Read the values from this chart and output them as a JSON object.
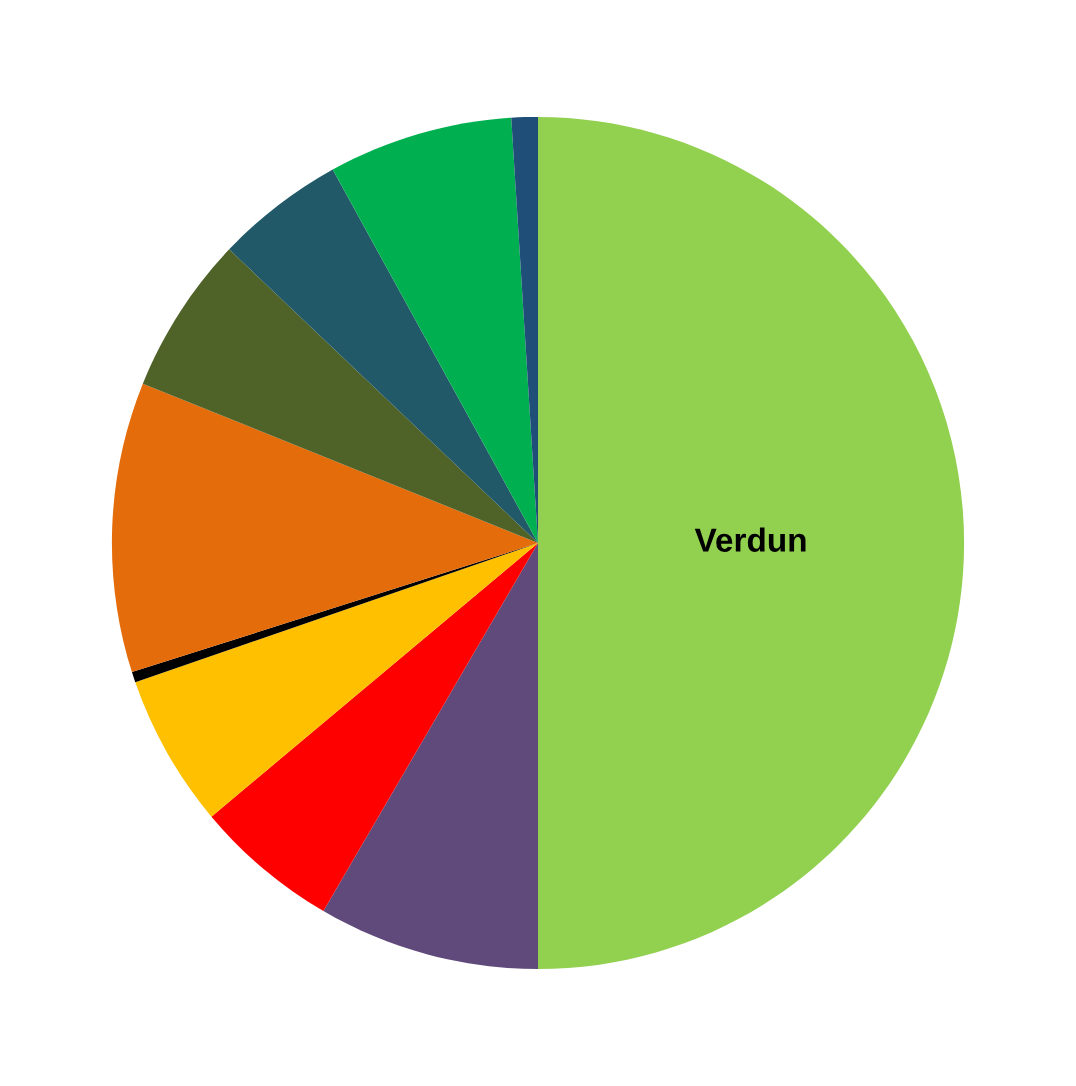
{
  "chart_data": {
    "type": "pie",
    "categories": [
      "Verdun",
      null,
      null,
      null,
      null,
      null,
      null,
      null,
      null,
      null
    ],
    "values": [
      50,
      8.4,
      5.5,
      5.8,
      0.4,
      11,
      6,
      4.9,
      7,
      1
    ],
    "colors": [
      "#92d050",
      "#604a7b",
      "#ff0000",
      "#ffc000",
      "#000000",
      "#e46c0a",
      "#4f6228",
      "#215968",
      "#00b050",
      "#1f4e79"
    ]
  }
}
